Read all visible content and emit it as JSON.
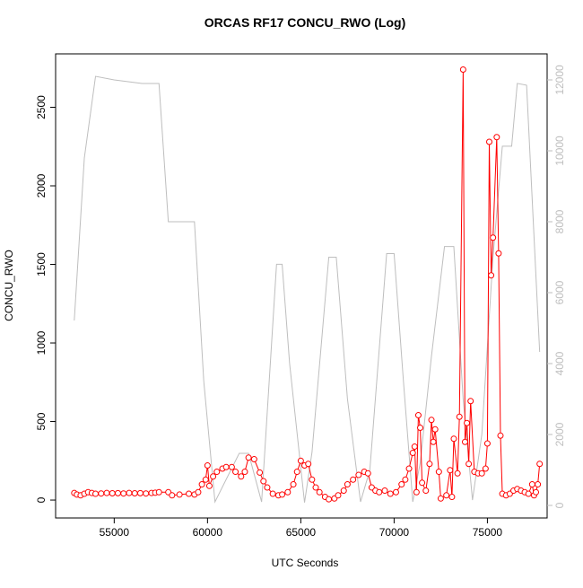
{
  "chart_data": {
    "type": "line",
    "title": "ORCAS RF17 CONCU_RWO (Log)",
    "x_label": "UTC Seconds",
    "y_label": "CONCU_RWO",
    "xlim": [
      51860,
      78200
    ],
    "xticks": [
      55000,
      60000,
      65000,
      70000,
      75000
    ],
    "ylim": [
      -114,
      2840
    ],
    "yticks": [
      0,
      500,
      1000,
      1500,
      2000,
      2500
    ],
    "y2lim": [
      -354,
      12734
    ],
    "y2ticks": [
      0,
      2000,
      4000,
      6000,
      8000,
      10000,
      12000
    ],
    "series": [
      {
        "color": "#bebebe",
        "axis": "y2",
        "markers": false,
        "x": [
          52860,
          53400,
          54000,
          55000,
          56500,
          57400,
          57900,
          59300,
          59800,
          60400,
          61700,
          62200,
          62900,
          63700,
          64000,
          64400,
          65200,
          65600,
          66500,
          66900,
          67500,
          68200,
          68700,
          69600,
          70000,
          70500,
          71000,
          71400,
          72000,
          72700,
          73200,
          73700,
          74200,
          74700,
          75300,
          75800,
          76300,
          76600,
          77100,
          77800
        ],
        "values": [
          5215,
          9800,
          12100,
          12000,
          11900,
          11900,
          8000,
          8000,
          3500,
          100,
          1470,
          1470,
          100,
          6800,
          6800,
          4000,
          80,
          1500,
          7000,
          7000,
          3000,
          100,
          1000,
          7100,
          7100,
          3500,
          100,
          1200,
          4200,
          7300,
          7300,
          3000,
          150,
          2000,
          7000,
          10130,
          10130,
          11900,
          11850,
          4330
        ]
      },
      {
        "color": "#ff0000",
        "markers": true,
        "x": [
          52860,
          53000,
          53200,
          53400,
          53600,
          53800,
          54000,
          54300,
          54600,
          54900,
          55200,
          55500,
          55800,
          56100,
          56400,
          56700,
          57000,
          57200,
          57400,
          57900,
          58100,
          58500,
          59000,
          59300,
          59500,
          59700,
          59900,
          60000,
          60100,
          60300,
          60500,
          60800,
          61000,
          61300,
          61500,
          61800,
          62000,
          62200,
          62500,
          62800,
          63000,
          63200,
          63500,
          63800,
          64000,
          64300,
          64600,
          64800,
          65000,
          65200,
          65400,
          65600,
          65800,
          66000,
          66300,
          66500,
          66800,
          67000,
          67300,
          67500,
          67800,
          68100,
          68400,
          68600,
          68800,
          69000,
          69200,
          69500,
          69800,
          70100,
          70400,
          70600,
          70800,
          71000,
          71100,
          71200,
          71300,
          71400,
          71500,
          71700,
          71900,
          72000,
          72100,
          72200,
          72400,
          72500,
          72800,
          73000,
          73100,
          73200,
          73400,
          73500,
          73700,
          73800,
          73900,
          74000,
          74100,
          74300,
          74500,
          74700,
          74900,
          75000,
          75100,
          75200,
          75300,
          75500,
          75600,
          75700,
          75800,
          76000,
          76200,
          76400,
          76600,
          76800,
          77000,
          77200,
          77400,
          77500,
          77600,
          77700,
          77800
        ],
        "values": [
          45,
          35,
          30,
          40,
          50,
          45,
          40,
          42,
          45,
          43,
          44,
          42,
          45,
          43,
          44,
          42,
          45,
          47,
          50,
          50,
          30,
          35,
          40,
          35,
          50,
          100,
          130,
          220,
          90,
          150,
          180,
          200,
          210,
          210,
          180,
          150,
          180,
          270,
          260,
          175,
          120,
          80,
          40,
          30,
          35,
          50,
          100,
          180,
          250,
          220,
          230,
          130,
          80,
          50,
          20,
          5,
          10,
          30,
          60,
          100,
          130,
          160,
          180,
          170,
          80,
          60,
          50,
          60,
          40,
          50,
          100,
          130,
          200,
          300,
          340,
          50,
          540,
          460,
          110,
          60,
          230,
          510,
          370,
          450,
          180,
          10,
          30,
          190,
          20,
          390,
          170,
          530,
          2740,
          370,
          490,
          230,
          630,
          180,
          170,
          170,
          200,
          360,
          2280,
          1430,
          1670,
          2310,
          1570,
          410,
          40,
          30,
          40,
          60,
          70,
          60,
          50,
          40,
          100,
          30,
          50,
          100,
          230
        ]
      }
    ]
  }
}
